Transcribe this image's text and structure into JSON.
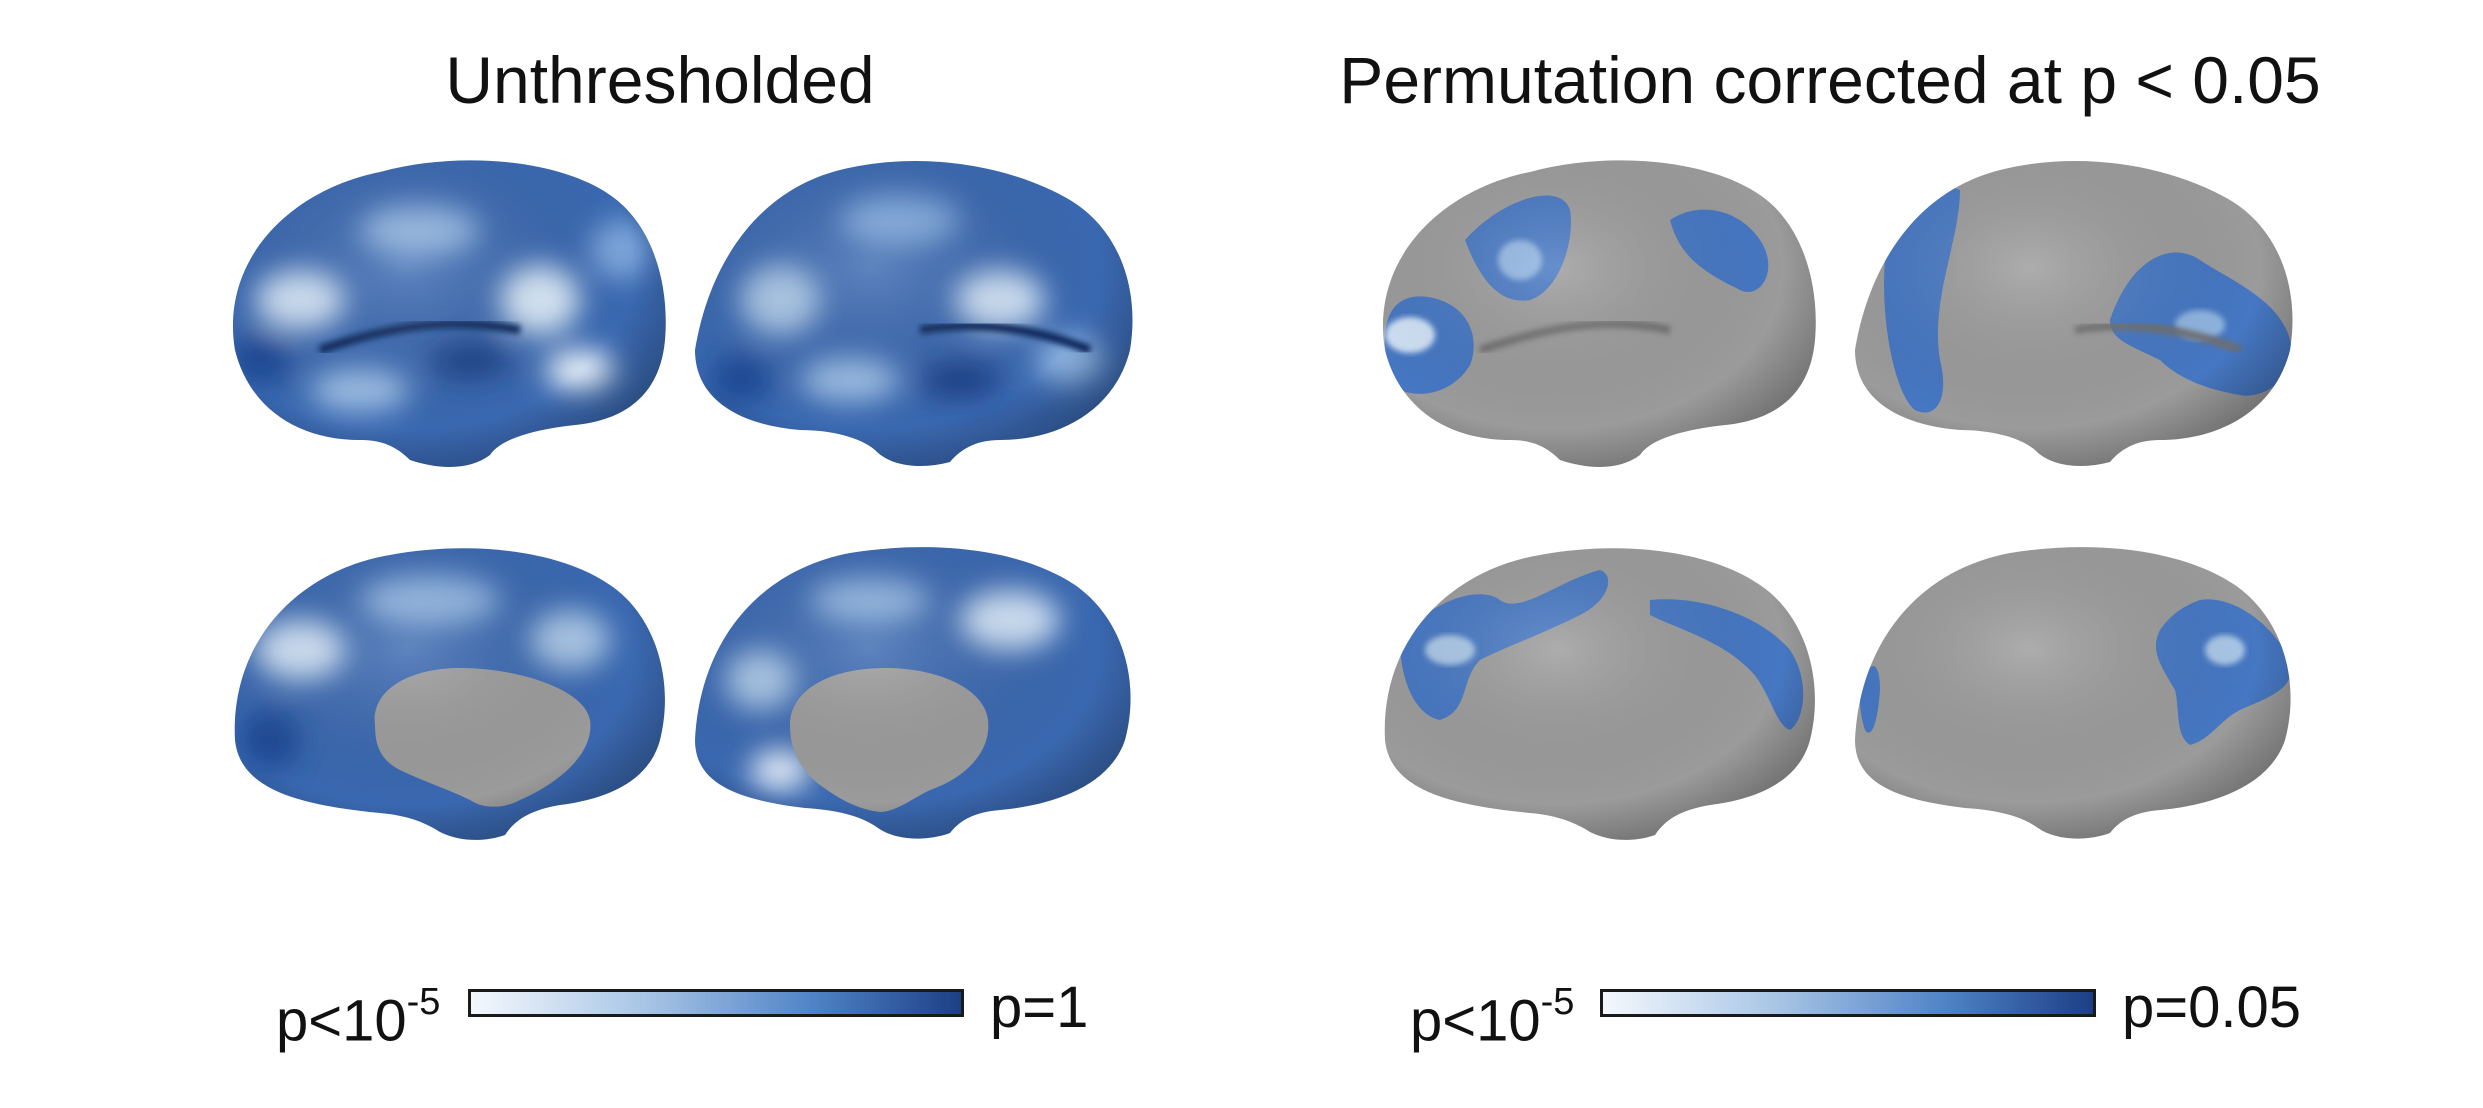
{
  "panels": {
    "left": {
      "title": "Unthresholded",
      "colorbar": {
        "min_label_prefix": "p<10",
        "min_label_exponent": "-5",
        "max_label": "p=1",
        "colors": [
          "#f4f8fd",
          "#a9c6e6",
          "#4f82c6",
          "#1d3f86"
        ]
      }
    },
    "right": {
      "title": "Permutation corrected at p < 0.05",
      "colorbar": {
        "min_label_prefix": "p<10",
        "min_label_exponent": "-5",
        "max_label": "p=0.05",
        "colors": [
          "#f4f8fd",
          "#a9c6e6",
          "#4f82c6",
          "#1d3f86"
        ]
      }
    }
  },
  "colors": {
    "surface_gray": "#9b9b9b",
    "blue_dark": "#1d3f86",
    "blue_mid": "#3f6fb8",
    "blue_light": "#cfe1f5"
  }
}
